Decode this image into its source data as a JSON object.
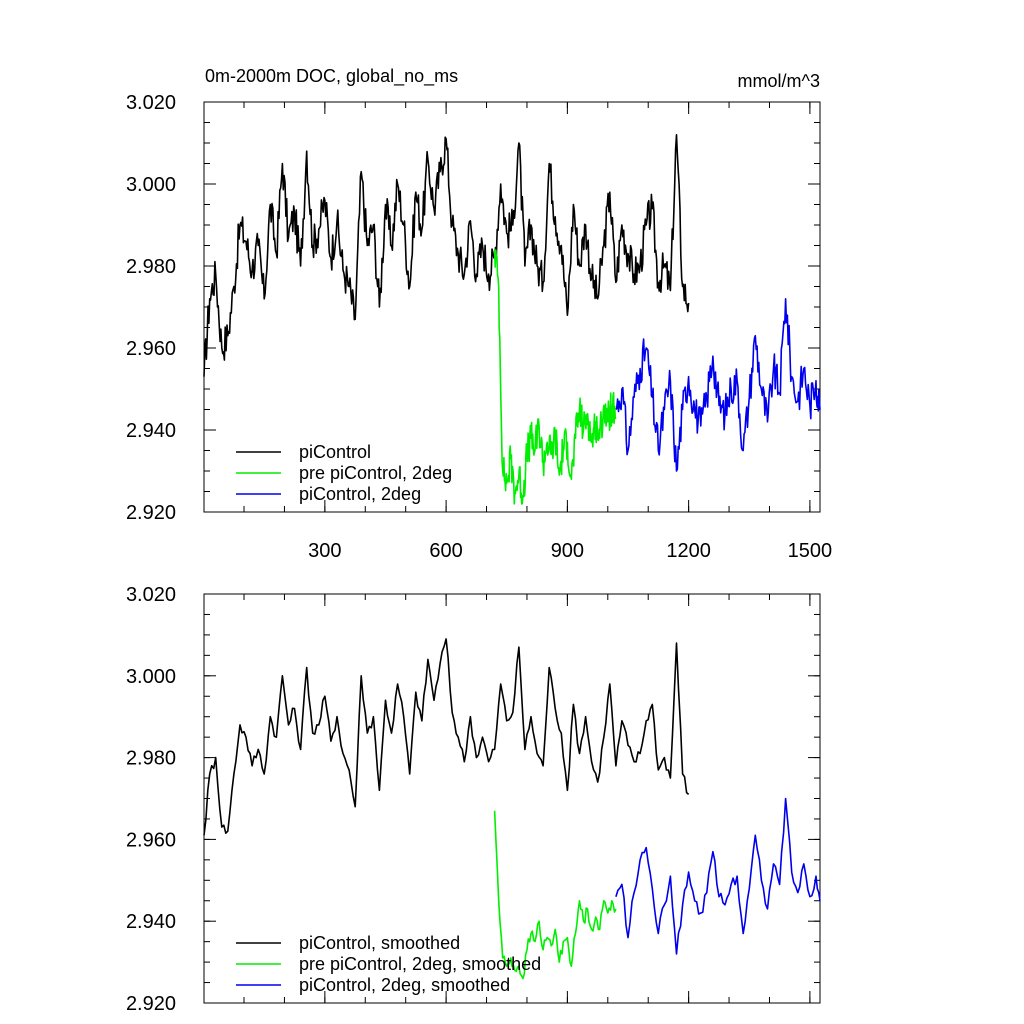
{
  "colors": {
    "black": "#000000",
    "green": "#00ee00",
    "blue": "#0000ee"
  },
  "chart_data": [
    {
      "type": "line",
      "title": "0m-2000m DOC, global_no_ms",
      "units": "mmol/m^3",
      "xlim": [
        1,
        1525
      ],
      "ylim": [
        2.92,
        3.02
      ],
      "yticks": [
        2.92,
        2.94,
        2.96,
        2.98,
        3.0,
        3.02
      ],
      "ytick_labels": [
        "2.920",
        "2.940",
        "2.960",
        "2.980",
        "3.000",
        "3.020"
      ],
      "xticks": [
        300,
        600,
        900,
        1200,
        1500
      ],
      "xtick_labels": [
        "300",
        "600",
        "900",
        "1200",
        "1500"
      ],
      "legend_position": "bottom-left",
      "series": [
        {
          "name": "piControl",
          "color": "#000000",
          "x": [
            1,
            15,
            30,
            45,
            60,
            75,
            90,
            105,
            120,
            135,
            150,
            165,
            180,
            195,
            210,
            225,
            240,
            255,
            270,
            285,
            300,
            315,
            330,
            345,
            360,
            375,
            390,
            405,
            420,
            435,
            450,
            465,
            480,
            495,
            510,
            525,
            540,
            555,
            570,
            585,
            600,
            615,
            630,
            645,
            660,
            675,
            690,
            705,
            720,
            735,
            750,
            765,
            780,
            795,
            810,
            825,
            840,
            855,
            870,
            885,
            900,
            915,
            930,
            945,
            960,
            975,
            990,
            1005,
            1020,
            1035,
            1050,
            1065,
            1080,
            1095,
            1110,
            1125,
            1140,
            1155,
            1170,
            1185,
            1200
          ],
          "y": [
            2.953,
            2.972,
            2.978,
            2.96,
            2.963,
            2.975,
            2.99,
            2.986,
            2.979,
            2.985,
            2.972,
            2.995,
            2.983,
            3.005,
            2.987,
            2.993,
            2.98,
            3.008,
            2.985,
            2.989,
            2.996,
            2.982,
            2.991,
            2.979,
            2.975,
            2.967,
            3.003,
            2.985,
            2.99,
            2.97,
            2.995,
            2.985,
            3.0,
            2.99,
            2.975,
            2.998,
            2.989,
            3.006,
            2.994,
            3.003,
            3.011,
            2.99,
            2.983,
            2.978,
            2.991,
            2.978,
            2.985,
            2.978,
            2.982,
            3.0,
            2.988,
            2.99,
            3.01,
            2.98,
            2.99,
            2.98,
            2.976,
            3.005,
            2.992,
            2.985,
            2.968,
            2.995,
            2.98,
            2.99,
            2.977,
            2.972,
            2.985,
            2.998,
            2.976,
            2.99,
            2.983,
            2.978,
            2.98,
            2.99,
            2.994,
            2.976,
            2.98,
            2.974,
            3.012,
            2.975,
            2.971
          ],
          "y_range": [
            2.953,
            3.014
          ]
        },
        {
          "name": "pre piControl, 2deg",
          "color": "#00ee00",
          "x": [
            720,
            730,
            740,
            750,
            760,
            770,
            780,
            790,
            800,
            810,
            820,
            830,
            840,
            850,
            860,
            870,
            880,
            890,
            900,
            910,
            920,
            930,
            940,
            950,
            960,
            970,
            980,
            990,
            1000,
            1010,
            1020
          ],
          "y": [
            2.984,
            2.975,
            2.93,
            2.927,
            2.933,
            2.925,
            2.929,
            2.924,
            2.934,
            2.938,
            2.935,
            2.941,
            2.932,
            2.937,
            2.934,
            2.939,
            2.929,
            2.936,
            2.937,
            2.928,
            2.938,
            2.945,
            2.94,
            2.944,
            2.937,
            2.942,
            2.938,
            2.946,
            2.942,
            2.946,
            2.943
          ],
          "y_range": [
            2.921,
            2.986
          ]
        },
        {
          "name": "piControl, 2deg",
          "color": "#0000ee",
          "x": [
            1020,
            1035,
            1050,
            1065,
            1080,
            1095,
            1110,
            1125,
            1140,
            1155,
            1170,
            1185,
            1200,
            1215,
            1230,
            1245,
            1260,
            1275,
            1290,
            1305,
            1320,
            1335,
            1350,
            1365,
            1380,
            1395,
            1410,
            1425,
            1440,
            1455,
            1470,
            1485,
            1500,
            1515,
            1525
          ],
          "y": [
            2.945,
            2.95,
            2.935,
            2.948,
            2.955,
            2.96,
            2.948,
            2.935,
            2.945,
            2.952,
            2.93,
            2.945,
            2.953,
            2.945,
            2.941,
            2.948,
            2.958,
            2.946,
            2.944,
            2.95,
            2.952,
            2.935,
            2.948,
            2.963,
            2.95,
            2.942,
            2.955,
            2.949,
            2.972,
            2.953,
            2.947,
            2.955,
            2.946,
            2.952,
            2.945
          ],
          "y_range": [
            2.928,
            2.974
          ]
        }
      ]
    },
    {
      "type": "line",
      "xlim": [
        1,
        1525
      ],
      "ylim": [
        2.92,
        3.02
      ],
      "yticks": [
        2.92,
        2.94,
        2.96,
        2.98,
        3.0,
        3.02
      ],
      "ytick_labels": [
        "2.920",
        "2.940",
        "2.960",
        "2.980",
        "3.000",
        "3.020"
      ],
      "xticks": [
        300,
        600,
        900,
        1200,
        1500
      ],
      "legend_position": "bottom-left",
      "series": [
        {
          "name": "piControl, smoothed",
          "color": "#000000",
          "x": [
            1,
            15,
            30,
            45,
            60,
            75,
            90,
            105,
            120,
            135,
            150,
            165,
            180,
            195,
            210,
            225,
            240,
            255,
            270,
            285,
            300,
            315,
            330,
            345,
            360,
            375,
            390,
            405,
            420,
            435,
            450,
            465,
            480,
            495,
            510,
            525,
            540,
            555,
            570,
            585,
            600,
            615,
            630,
            645,
            660,
            675,
            690,
            705,
            720,
            735,
            750,
            765,
            780,
            795,
            810,
            825,
            840,
            855,
            870,
            885,
            900,
            915,
            930,
            945,
            960,
            975,
            990,
            1005,
            1020,
            1035,
            1050,
            1065,
            1080,
            1095,
            1110,
            1125,
            1140,
            1155,
            1170,
            1185,
            1200
          ],
          "y": [
            2.961,
            2.976,
            2.98,
            2.963,
            2.962,
            2.976,
            2.988,
            2.985,
            2.978,
            2.982,
            2.976,
            2.99,
            2.985,
            3.0,
            2.988,
            2.992,
            2.982,
            3.002,
            2.986,
            2.988,
            2.995,
            2.984,
            2.99,
            2.981,
            2.977,
            2.968,
            3.0,
            2.986,
            2.99,
            2.972,
            2.994,
            2.986,
            2.998,
            2.99,
            2.976,
            2.996,
            2.989,
            3.004,
            2.994,
            3.003,
            3.009,
            2.991,
            2.985,
            2.979,
            2.99,
            2.98,
            2.985,
            2.979,
            2.982,
            2.998,
            2.989,
            2.991,
            3.007,
            2.982,
            2.99,
            2.981,
            2.978,
            3.002,
            2.992,
            2.986,
            2.972,
            2.993,
            2.981,
            2.99,
            2.979,
            2.974,
            2.985,
            2.998,
            2.978,
            2.989,
            2.983,
            2.979,
            2.981,
            2.989,
            2.993,
            2.977,
            2.98,
            2.975,
            3.008,
            2.976,
            2.971
          ]
        },
        {
          "name": "pre piControl, 2deg, smoothed",
          "color": "#00ee00",
          "x": [
            720,
            730,
            740,
            750,
            760,
            770,
            780,
            790,
            800,
            810,
            820,
            830,
            840,
            850,
            860,
            870,
            880,
            890,
            900,
            910,
            920,
            930,
            940,
            950,
            960,
            970,
            980,
            990,
            1000,
            1010,
            1020
          ],
          "y": [
            2.967,
            2.945,
            2.931,
            2.929,
            2.931,
            2.928,
            2.929,
            2.926,
            2.933,
            2.937,
            2.935,
            2.94,
            2.933,
            2.936,
            2.934,
            2.938,
            2.93,
            2.935,
            2.936,
            2.929,
            2.937,
            2.945,
            2.94,
            2.943,
            2.938,
            2.941,
            2.938,
            2.945,
            2.942,
            2.945,
            2.943
          ]
        },
        {
          "name": "piControl, 2deg, smoothed",
          "color": "#0000ee",
          "x": [
            1020,
            1035,
            1050,
            1065,
            1080,
            1095,
            1110,
            1125,
            1140,
            1155,
            1170,
            1185,
            1200,
            1215,
            1230,
            1245,
            1260,
            1275,
            1290,
            1305,
            1320,
            1335,
            1350,
            1365,
            1380,
            1395,
            1410,
            1425,
            1440,
            1455,
            1470,
            1485,
            1500,
            1515,
            1525
          ],
          "y": [
            2.946,
            2.949,
            2.936,
            2.947,
            2.955,
            2.958,
            2.948,
            2.937,
            2.944,
            2.951,
            2.932,
            2.944,
            2.952,
            2.945,
            2.942,
            2.947,
            2.957,
            2.946,
            2.944,
            2.949,
            2.951,
            2.937,
            2.948,
            2.961,
            2.95,
            2.943,
            2.954,
            2.949,
            2.97,
            2.952,
            2.947,
            2.954,
            2.946,
            2.951,
            2.945
          ]
        }
      ]
    }
  ]
}
